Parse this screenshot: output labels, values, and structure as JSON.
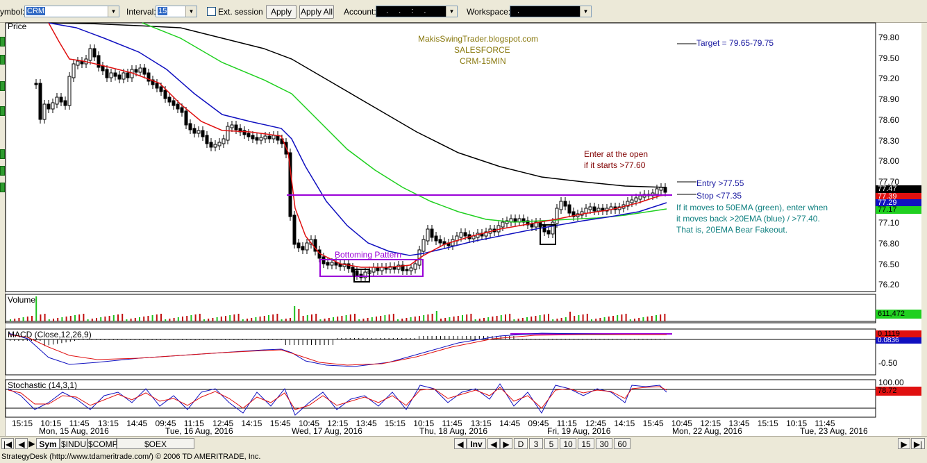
{
  "toolbar": {
    "symbol_label": "ymbol:",
    "symbol_value": "CRM",
    "interval_label": "Interval:",
    "interval_value": "15",
    "ext_session_label": "Ext. session",
    "apply_label": "Apply",
    "apply_all_label": "Apply All",
    "account_label": "Account:",
    "account_value": ". . : .",
    "workspace_label": "Workspace:",
    "workspace_value": "."
  },
  "chart": {
    "price_pane_label": "Price",
    "blog": "MakisSwingTrader.blogspot.com",
    "company": "SALESFORCE",
    "subtitle": "CRM-15MIN",
    "target": "Target = 79.65-79.75",
    "enter_line1": "Enter at the open",
    "enter_line2": "if it starts >77.60",
    "entry": "Entry >77.55",
    "stop": "Stop <77.35",
    "note_line1": "If it moves to 50EMA (green), enter when",
    "note_line2": "it moves back >20EMA (blue) / >77.40.",
    "note_line3": "That is, 20EMA Bear Fakeout.",
    "bottoming": "Bottoming Pattern",
    "price_axis": [
      "79.80",
      "79.50",
      "79.20",
      "78.90",
      "78.60",
      "78.30",
      "78.00",
      "77.70",
      "77.40",
      "77.10",
      "76.80",
      "76.50",
      "76.20"
    ],
    "last_price": "77.47",
    "tag_red": "77.39",
    "tag_blue": "77.29",
    "tag_green": "77.17",
    "volume_label": "Volume",
    "volume_value": "611,472",
    "macd_label": "MACD (Close,12,26,9)",
    "macd_value": "0.1119",
    "macd_value2": "0.0836",
    "macd_axis": "-0.50",
    "stoch_label": "Stochastic (14,3,1)",
    "stoch_value": "78.72",
    "stoch_top": "100.00",
    "time_labels": [
      "15:15",
      "10:15",
      "11:45",
      "13:15",
      "14:45",
      "09:45",
      "11:15",
      "12:45",
      "14:15",
      "15:45",
      "10:45",
      "12:15",
      "13:45",
      "15:15",
      "10:15",
      "11:45",
      "13:15",
      "14:45",
      "09:45",
      "11:15",
      "12:45",
      "14:15",
      "15:45",
      "10:45",
      "12:15",
      "13:45",
      "15:15",
      "10:15",
      "11:45"
    ],
    "date_labels": [
      "Mon, 15 Aug, 2016",
      "Tue, 16 Aug, 2016",
      "Wed, 17 Aug, 2016",
      "Thu, 18 Aug, 2016",
      "Fri, 19 Aug, 2016",
      "Mon, 22 Aug, 2016",
      "Tue, 23 Aug, 2016"
    ]
  },
  "bottom": {
    "tabs": [
      "Sym",
      "$INDU",
      "$COMPX",
      "$OEX"
    ],
    "inv": "Inv",
    "intervals": [
      "D",
      "3",
      "5",
      "10",
      "15",
      "30",
      "60"
    ]
  },
  "status": "StrategyDesk (http://www.tdameritrade.com/) © 2006 TD AMERITRADE, Inc.",
  "colors": {
    "ema8": "#e01010",
    "ema20": "#1010c0",
    "ema50": "#20d020",
    "ema200": "#000000",
    "annotation_purple": "#9a00d8",
    "teal_note": "#108080",
    "olive_title": "#8a7a10",
    "maroon_note": "#800000"
  }
}
